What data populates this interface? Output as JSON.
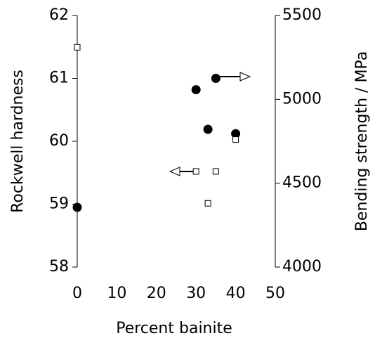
{
  "chart_data": {
    "type": "scatter",
    "x_label": "Percent bainite",
    "y_label": "Rockwell hardness",
    "y2_label": "Bending strength / MPa",
    "xlim": [
      0,
      50
    ],
    "xticks": [
      0,
      10,
      20,
      30,
      40,
      50
    ],
    "ylim": [
      58,
      62
    ],
    "yticks": [
      58,
      59,
      60,
      61,
      62
    ],
    "y2lim": [
      4000,
      5500
    ],
    "y2ticks": [
      4000,
      4500,
      5000,
      5500
    ],
    "series": [
      {
        "marker": "circle",
        "color": "#000000",
        "x": [
          0,
          30,
          33,
          35,
          40
        ],
        "values": [
          58.95,
          60.82,
          60.19,
          61.0,
          60.12
        ]
      },
      {
        "marker": "square",
        "color": "#000000",
        "axis": "y2",
        "x": [
          0,
          30,
          33,
          35,
          40
        ],
        "values": [
          5310,
          4570,
          4380,
          4570,
          4760
        ]
      }
    ]
  }
}
